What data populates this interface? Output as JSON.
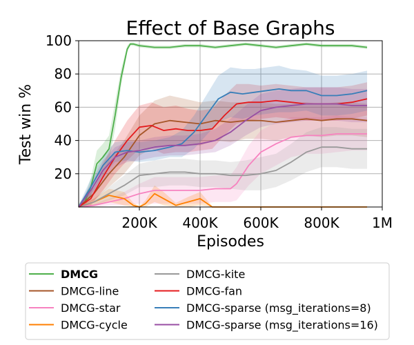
{
  "chart_data": {
    "type": "line",
    "title": "Effect of Base Graphs",
    "xlabel": "Episodes",
    "ylabel": "Test win %",
    "xlim": [
      0,
      1000000
    ],
    "ylim": [
      0,
      100
    ],
    "xticks": [
      200000,
      400000,
      600000,
      800000,
      1000000
    ],
    "xtick_labels": [
      "200K",
      "400K",
      "600K",
      "800K",
      "1M"
    ],
    "yticks": [
      20,
      40,
      60,
      80,
      100
    ],
    "ytick_labels": [
      "20",
      "40",
      "60",
      "80",
      "100"
    ],
    "grid": true,
    "legend_position": "below",
    "series": [
      {
        "name": "DMCG",
        "bold": true,
        "color": "#4daf4a",
        "x": [
          0,
          20000,
          40000,
          60000,
          80000,
          100000,
          120000,
          140000,
          160000,
          170000,
          180000,
          200000,
          250000,
          300000,
          350000,
          400000,
          450000,
          500000,
          550000,
          600000,
          650000,
          700000,
          750000,
          800000,
          850000,
          900000,
          950000
        ],
        "y": [
          0,
          3,
          12,
          26,
          30,
          35,
          55,
          78,
          95,
          98,
          98,
          97,
          96,
          96,
          97,
          97,
          96,
          97,
          98,
          97,
          96,
          97,
          98,
          97,
          97,
          97,
          96
        ],
        "band": [
          2,
          3,
          5,
          8,
          8,
          8,
          8,
          5,
          2,
          1,
          1,
          1,
          1,
          1,
          1,
          1,
          1,
          1,
          1,
          1,
          1,
          1,
          1,
          1,
          1,
          1,
          1
        ]
      },
      {
        "name": "DMCG-line",
        "color": "#a65628",
        "x": [
          0,
          50000,
          100000,
          150000,
          200000,
          250000,
          300000,
          350000,
          400000,
          450000,
          500000,
          550000,
          600000,
          650000,
          700000,
          750000,
          800000,
          850000,
          900000,
          950000
        ],
        "y": [
          0,
          8,
          20,
          30,
          43,
          50,
          52,
          51,
          50,
          52,
          51,
          52,
          52,
          51,
          52,
          53,
          52,
          53,
          53,
          52
        ],
        "band": [
          1,
          4,
          8,
          10,
          12,
          14,
          15,
          14,
          13,
          12,
          12,
          11,
          11,
          11,
          10,
          10,
          10,
          10,
          10,
          10
        ]
      },
      {
        "name": "DMCG-star",
        "color": "#f781bf",
        "x": [
          0,
          50000,
          100000,
          150000,
          200000,
          250000,
          300000,
          350000,
          400000,
          450000,
          500000,
          520000,
          560000,
          600000,
          650000,
          700000,
          750000,
          800000,
          850000,
          900000,
          950000
        ],
        "y": [
          0,
          1,
          3,
          5,
          8,
          10,
          10,
          10,
          10,
          11,
          11,
          14,
          25,
          33,
          38,
          42,
          43,
          43,
          44,
          44,
          44
        ],
        "band": [
          0.5,
          1,
          2,
          4,
          6,
          8,
          8,
          8,
          8,
          8,
          8,
          10,
          12,
          13,
          13,
          12,
          11,
          11,
          11,
          10,
          10
        ]
      },
      {
        "name": "DMCG-cycle",
        "color": "#ff7f00",
        "x": [
          0,
          50000,
          100000,
          150000,
          180000,
          200000,
          220000,
          250000,
          280000,
          320000,
          360000,
          400000,
          440000,
          500000,
          600000,
          700000,
          800000,
          950000
        ],
        "y": [
          0,
          3,
          7,
          5,
          1,
          0,
          2,
          8,
          5,
          1,
          3,
          5,
          0,
          0,
          0,
          0,
          0,
          0
        ],
        "band": [
          0.5,
          2,
          4,
          4,
          1.5,
          0.5,
          2,
          5,
          4,
          1.5,
          3,
          4,
          0.5,
          0.3,
          0.3,
          0.3,
          0.3,
          0.3
        ]
      },
      {
        "name": "DMCG-kite",
        "color": "#999999",
        "x": [
          0,
          50000,
          100000,
          150000,
          200000,
          250000,
          300000,
          350000,
          400000,
          450000,
          500000,
          550000,
          600000,
          650000,
          700000,
          750000,
          800000,
          850000,
          900000,
          950000
        ],
        "y": [
          0,
          3,
          8,
          13,
          19,
          20,
          21,
          21,
          20,
          20,
          19,
          19,
          20,
          22,
          27,
          33,
          36,
          36,
          35,
          35
        ],
        "band": [
          0.5,
          2,
          4,
          6,
          7,
          8,
          8,
          8,
          8,
          8,
          8,
          9,
          10,
          10,
          11,
          12,
          12,
          12,
          12,
          12
        ]
      },
      {
        "name": "DMCG-fan",
        "color": "#e41a1c",
        "x": [
          0,
          40000,
          80000,
          120000,
          160000,
          200000,
          240000,
          280000,
          320000,
          360000,
          400000,
          440000,
          480000,
          520000,
          560000,
          600000,
          650000,
          700000,
          750000,
          800000,
          850000,
          900000,
          950000
        ],
        "y": [
          0,
          5,
          18,
          30,
          40,
          48,
          49,
          46,
          47,
          46,
          46,
          47,
          55,
          62,
          63,
          63,
          64,
          63,
          62,
          62,
          62,
          63,
          65
        ],
        "band": [
          1,
          4,
          8,
          10,
          12,
          13,
          14,
          14,
          14,
          13,
          12,
          12,
          12,
          12,
          11,
          10,
          10,
          10,
          10,
          10,
          10,
          10,
          10
        ]
      },
      {
        "name": "DMCG-sparse (msg_iterations=8)",
        "color": "#377eb8",
        "x": [
          0,
          40000,
          80000,
          120000,
          160000,
          200000,
          250000,
          300000,
          340000,
          380000,
          420000,
          460000,
          500000,
          540000,
          580000,
          620000,
          660000,
          700000,
          750000,
          800000,
          850000,
          900000,
          950000
        ],
        "y": [
          0,
          12,
          25,
          33,
          34,
          33,
          34,
          36,
          38,
          45,
          55,
          65,
          69,
          68,
          69,
          70,
          71,
          70,
          70,
          67,
          67,
          68,
          70
        ],
        "band": [
          1,
          5,
          6,
          6,
          6,
          6,
          6,
          6,
          8,
          10,
          12,
          14,
          15,
          15,
          14,
          14,
          14,
          13,
          12,
          12,
          12,
          12,
          12
        ]
      },
      {
        "name": "DMCG-sparse (msg_iterations=16)",
        "color": "#984ea3",
        "x": [
          0,
          40000,
          80000,
          120000,
          160000,
          200000,
          250000,
          300000,
          350000,
          400000,
          450000,
          500000,
          550000,
          600000,
          650000,
          700000,
          750000,
          800000,
          850000,
          900000,
          950000
        ],
        "y": [
          0,
          10,
          22,
          30,
          33,
          34,
          36,
          37,
          37,
          38,
          40,
          45,
          52,
          58,
          60,
          61,
          62,
          62,
          62,
          61,
          61
        ],
        "band": [
          1,
          4,
          6,
          6,
          6,
          6,
          6,
          6,
          6,
          6,
          7,
          8,
          9,
          10,
          10,
          10,
          10,
          10,
          10,
          10,
          10
        ]
      }
    ]
  }
}
